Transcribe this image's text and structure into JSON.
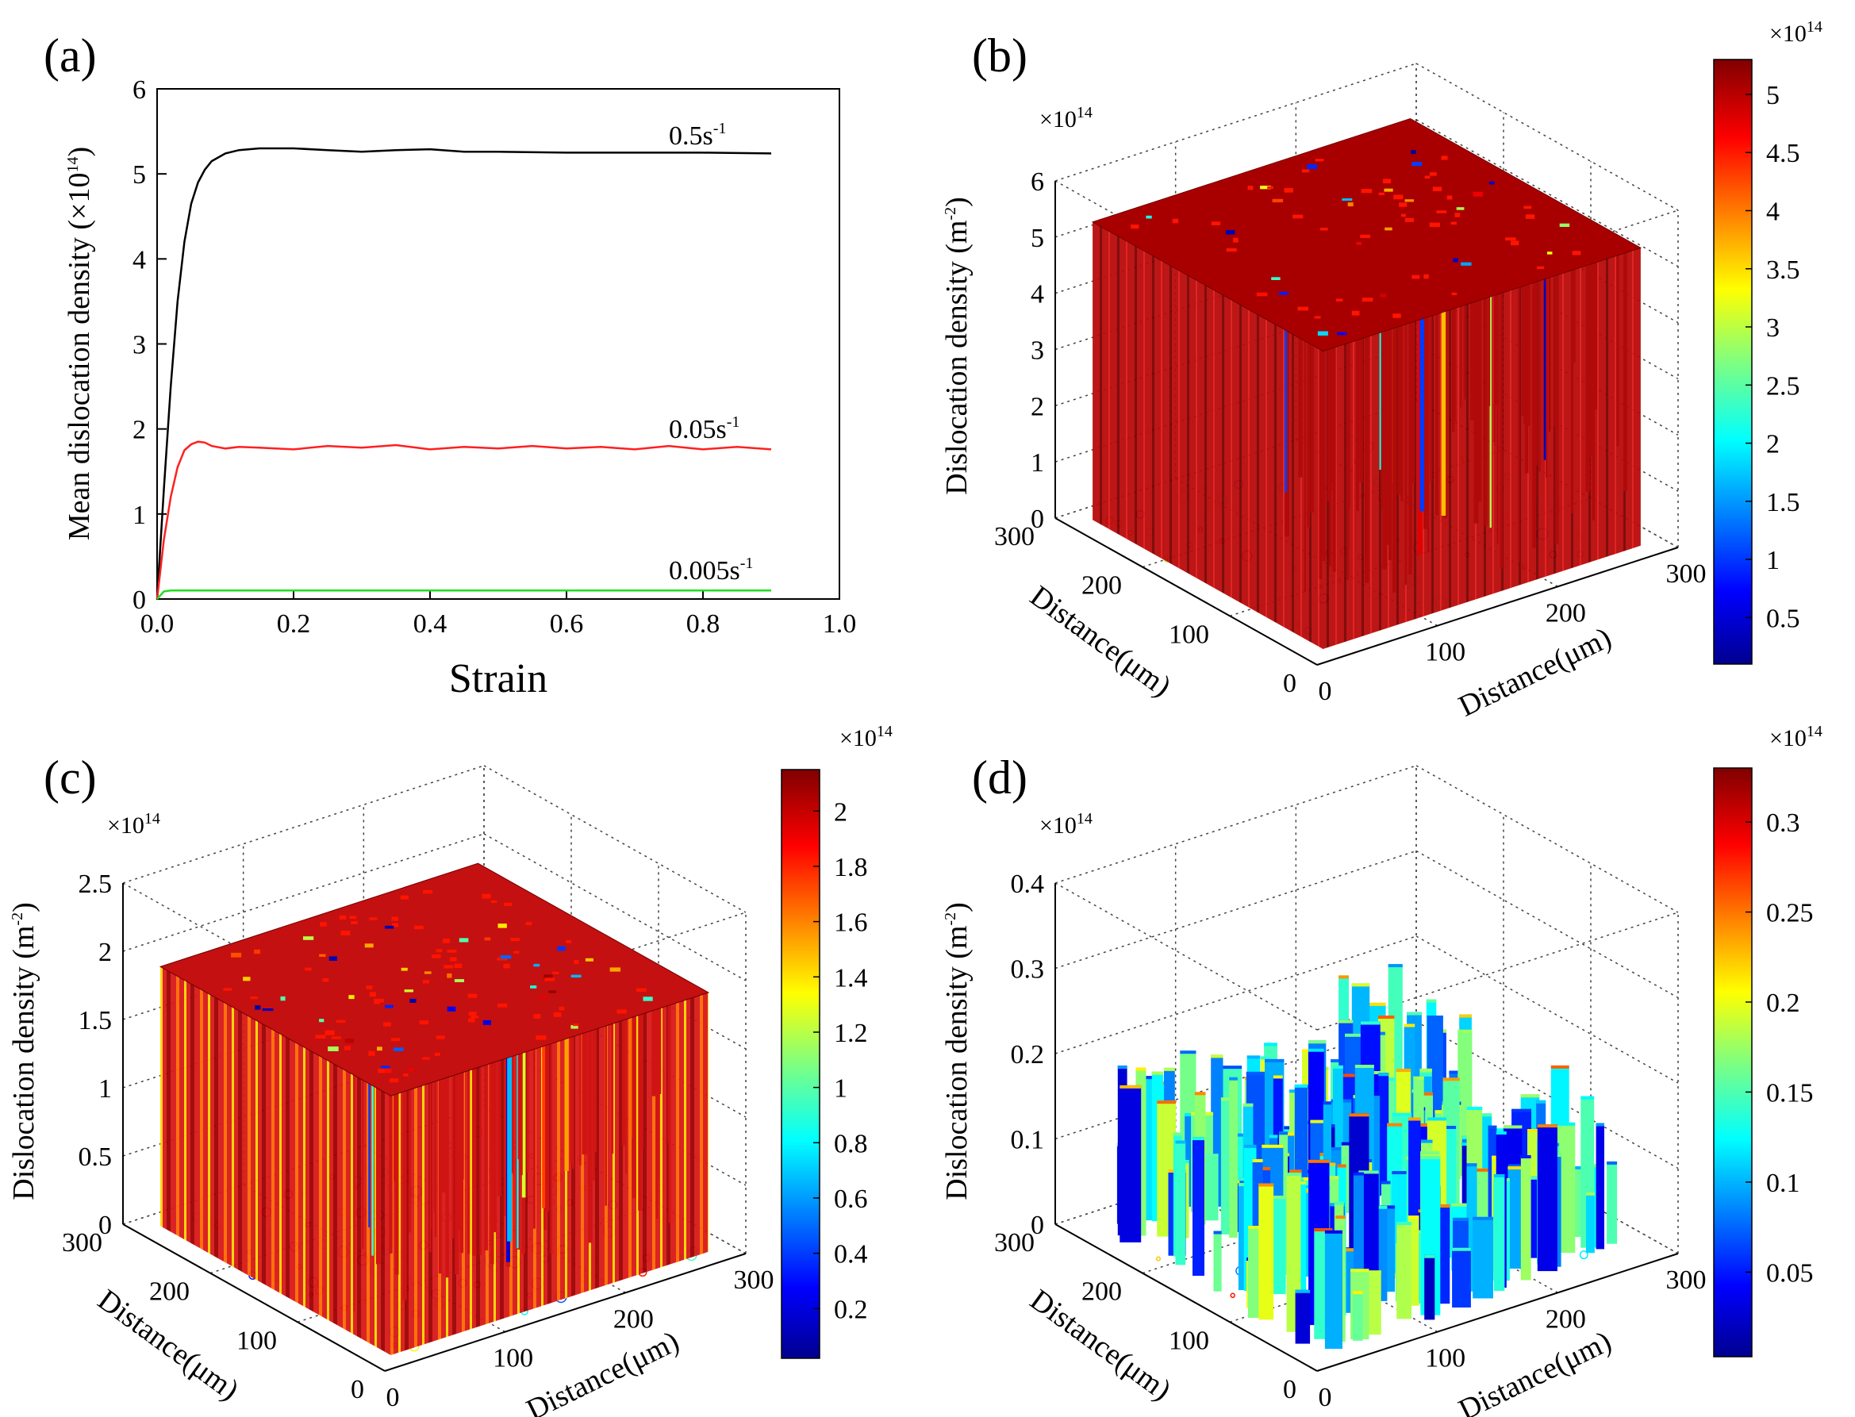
{
  "figure": {
    "colors": {
      "series_black": "#000000",
      "series_red": "#ff2020",
      "series_green": "#22dd22",
      "surface_top": "#a80000",
      "surface_wall": "#b80a0a"
    }
  },
  "chart_data": [
    {
      "panel": "(a)",
      "type": "line",
      "xlabel": "Strain",
      "ylabel": "Mean dislocation density (×10",
      "ylabel_exp": "14",
      "ylabel_close": ")",
      "xlim": [
        0.0,
        1.0
      ],
      "ylim": [
        0,
        6
      ],
      "xticks": [
        "0.0",
        "0.2",
        "0.4",
        "0.6",
        "0.8",
        "1.0"
      ],
      "yticks": [
        "0",
        "1",
        "2",
        "3",
        "4",
        "5",
        "6"
      ],
      "series": [
        {
          "name": "0.5s",
          "sup": "-1",
          "color": "#000000",
          "x": [
            0,
            0.01,
            0.02,
            0.03,
            0.04,
            0.05,
            0.06,
            0.07,
            0.08,
            0.1,
            0.12,
            0.15,
            0.2,
            0.25,
            0.3,
            0.35,
            0.4,
            0.45,
            0.5,
            0.6,
            0.7,
            0.8,
            0.9
          ],
          "y": [
            0,
            1.3,
            2.5,
            3.5,
            4.2,
            4.65,
            4.9,
            5.05,
            5.15,
            5.24,
            5.28,
            5.3,
            5.3,
            5.28,
            5.26,
            5.28,
            5.29,
            5.26,
            5.26,
            5.25,
            5.25,
            5.25,
            5.24
          ]
        },
        {
          "name": "0.05s",
          "sup": "-1",
          "color": "#ff2020",
          "x": [
            0,
            0.01,
            0.02,
            0.03,
            0.04,
            0.05,
            0.06,
            0.07,
            0.08,
            0.1,
            0.12,
            0.15,
            0.2,
            0.25,
            0.3,
            0.35,
            0.4,
            0.45,
            0.5,
            0.55,
            0.6,
            0.65,
            0.7,
            0.75,
            0.8,
            0.85,
            0.9
          ],
          "y": [
            0,
            0.7,
            1.2,
            1.55,
            1.75,
            1.82,
            1.85,
            1.84,
            1.8,
            1.77,
            1.79,
            1.78,
            1.76,
            1.8,
            1.78,
            1.81,
            1.76,
            1.79,
            1.77,
            1.8,
            1.77,
            1.79,
            1.76,
            1.8,
            1.76,
            1.79,
            1.76
          ]
        },
        {
          "name": "0.005s",
          "sup": "-1",
          "color": "#22dd22",
          "x": [
            0,
            0.01,
            0.02,
            0.05,
            0.1,
            0.2,
            0.3,
            0.4,
            0.5,
            0.6,
            0.7,
            0.8,
            0.9
          ],
          "y": [
            0,
            0.09,
            0.1,
            0.1,
            0.1,
            0.1,
            0.1,
            0.1,
            0.1,
            0.1,
            0.1,
            0.1,
            0.1
          ]
        }
      ]
    },
    {
      "panel": "(b)",
      "type": "surface3d",
      "zlabel": "Dislocation density (m",
      "zlabel_exp": "-2",
      "zlabel_close": ")",
      "xlabel": "Distance(μm)",
      "ylabel": "Distance(μm)",
      "axis_scale": "×10",
      "axis_scale_exp": "14",
      "zticks": [
        "0",
        "1",
        "2",
        "3",
        "4",
        "5",
        "6"
      ],
      "zlim": [
        0,
        6
      ],
      "xticks": [
        "0",
        "100",
        "200",
        "300"
      ],
      "yticks": [
        "0",
        "100",
        "200",
        "300"
      ],
      "plateau": 5.3,
      "colorbar": {
        "ticks": [
          "0.5",
          "1",
          "1.5",
          "2",
          "2.5",
          "3",
          "3.5",
          "4",
          "4.5",
          "5"
        ],
        "range": [
          0.1,
          5.3
        ],
        "scale": "×10",
        "scale_exp": "14"
      }
    },
    {
      "panel": "(c)",
      "type": "surface3d",
      "zlabel": "Dislocation density (m",
      "zlabel_exp": "-2",
      "zlabel_close": ")",
      "xlabel": "Distance(μm)",
      "ylabel": "Distance(μm)",
      "axis_scale": "×10",
      "axis_scale_exp": "14",
      "zticks": [
        "0",
        "0.5",
        "1",
        "1.5",
        "2",
        "2.5"
      ],
      "zlim": [
        0,
        2.5
      ],
      "xticks": [
        "0",
        "100",
        "200",
        "300"
      ],
      "yticks": [
        "0",
        "100",
        "200",
        "300"
      ],
      "plateau": 1.9,
      "colorbar": {
        "ticks": [
          "0.2",
          "0.4",
          "0.6",
          "0.8",
          "1",
          "1.2",
          "1.4",
          "1.6",
          "1.8",
          "2"
        ],
        "range": [
          0.02,
          2.15
        ],
        "scale": "×10",
        "scale_exp": "14"
      }
    },
    {
      "panel": "(d)",
      "type": "surface3d",
      "zlabel": "Dislocation density (m",
      "zlabel_exp": "-2",
      "zlabel_close": ")",
      "xlabel": "Distance(μm)",
      "ylabel": "Distance(μm)",
      "axis_scale": "×10",
      "axis_scale_exp": "14",
      "zticks": [
        "0",
        "0.1",
        "0.2",
        "0.3",
        "0.4"
      ],
      "zlim": [
        0,
        0.4
      ],
      "xticks": [
        "0",
        "100",
        "200",
        "300"
      ],
      "yticks": [
        "0",
        "100",
        "200",
        "300"
      ],
      "plateau": 0.15,
      "colorbar": {
        "ticks": [
          "0.05",
          "0.1",
          "0.15",
          "0.2",
          "0.25",
          "0.3"
        ],
        "range": [
          0.003,
          0.33
        ],
        "scale": "×10",
        "scale_exp": "14"
      }
    }
  ]
}
